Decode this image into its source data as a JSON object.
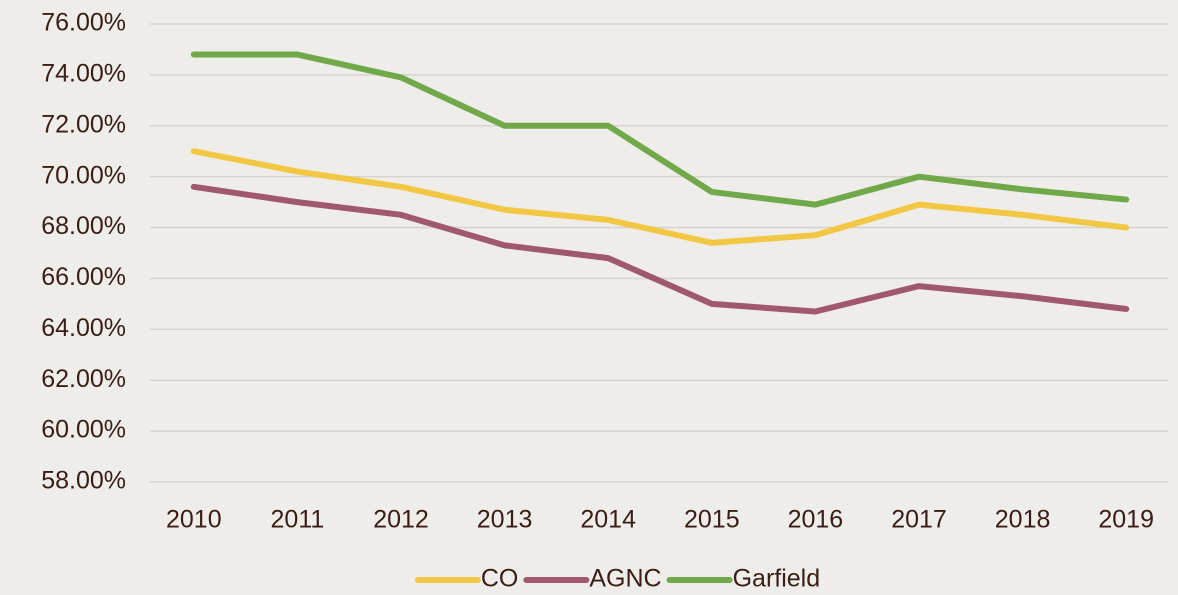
{
  "chart_data": {
    "type": "line",
    "categories": [
      "2010",
      "2011",
      "2012",
      "2013",
      "2014",
      "2015",
      "2016",
      "2017",
      "2018",
      "2019"
    ],
    "series": [
      {
        "name": "CO",
        "color": "#f2c744",
        "values": [
          71.0,
          70.2,
          69.6,
          68.7,
          68.3,
          67.4,
          67.7,
          68.9,
          68.5,
          68.0
        ]
      },
      {
        "name": "AGNC",
        "color": "#a0586e",
        "values": [
          69.6,
          69.0,
          68.5,
          67.3,
          66.8,
          65.0,
          64.7,
          65.7,
          65.3,
          64.8
        ]
      },
      {
        "name": "Garfield",
        "color": "#70a84a",
        "values": [
          74.8,
          74.8,
          73.9,
          72.0,
          72.0,
          69.4,
          68.9,
          70.0,
          69.5,
          69.1
        ]
      }
    ],
    "ylim": [
      58,
      76
    ],
    "yticks": [
      {
        "value": 58,
        "label": "58.00%"
      },
      {
        "value": 60,
        "label": "60.00%"
      },
      {
        "value": 62,
        "label": "62.00%"
      },
      {
        "value": 64,
        "label": "64.00%"
      },
      {
        "value": 66,
        "label": "66.00%"
      },
      {
        "value": 68,
        "label": "68.00%"
      },
      {
        "value": 70,
        "label": "70.00%"
      },
      {
        "value": 72,
        "label": "72.00%"
      },
      {
        "value": 74,
        "label": "74.00%"
      },
      {
        "value": 76,
        "label": "76.00%"
      }
    ],
    "grid": true,
    "legend": "bottom"
  }
}
